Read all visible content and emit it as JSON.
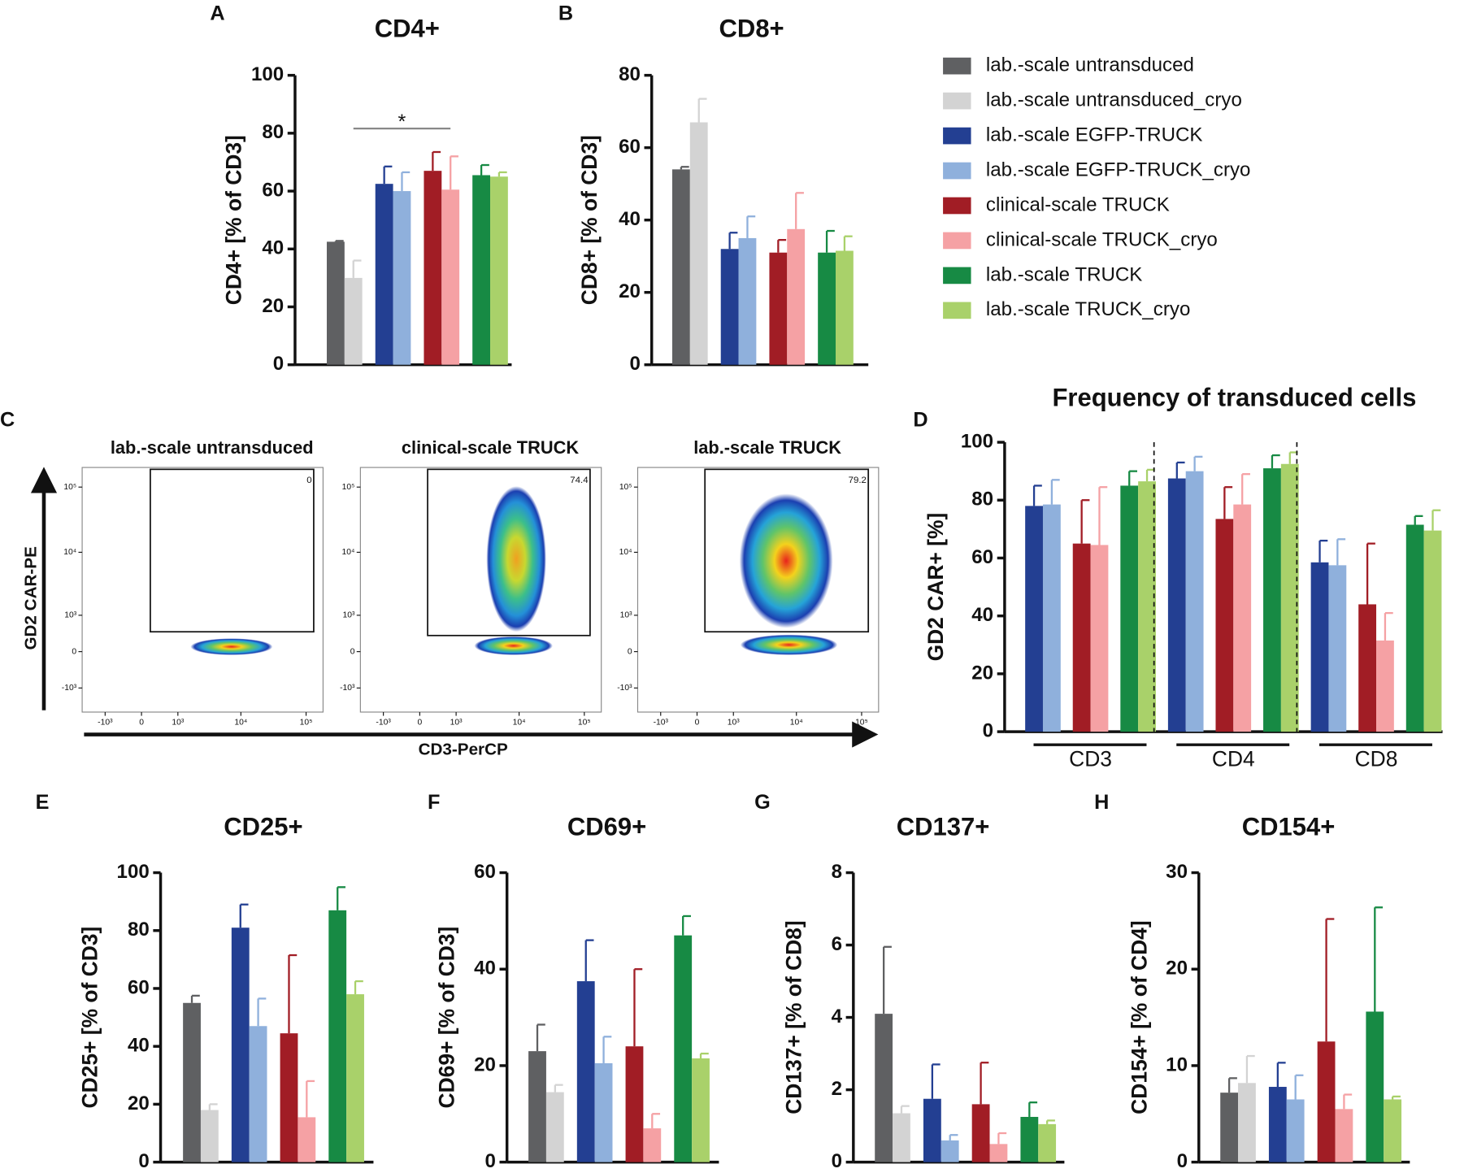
{
  "legend": [
    {
      "name": "lab.-scale untransduced",
      "color": "#5f6062"
    },
    {
      "name": "lab.-scale untransduced_cryo",
      "color": "#d3d3d3"
    },
    {
      "name": "lab.-scale EGFP-TRUCK",
      "color": "#233f92"
    },
    {
      "name": "lab.-scale EGFP-TRUCK_cryo",
      "color": "#8fb0dc"
    },
    {
      "name": "clinical-scale TRUCK",
      "color": "#a11d25"
    },
    {
      "name": "clinical-scale TRUCK_cryo",
      "color": "#f5a1a4"
    },
    {
      "name": "lab.-scale TRUCK",
      "color": "#178a44"
    },
    {
      "name": "lab.-scale TRUCK_cryo",
      "color": "#a9d16a"
    }
  ],
  "chart_data": [
    {
      "type": "bar",
      "panel": "A",
      "title": "CD4+",
      "y_label": "CD4+ [% of CD3]",
      "ylim": [
        0,
        100
      ],
      "yticks": [
        0,
        20,
        40,
        60,
        80,
        100
      ],
      "values": [
        42.5,
        30,
        62.5,
        60,
        67,
        60.5,
        65.5,
        65
      ],
      "errors": [
        0.3,
        6,
        6,
        6.5,
        6.5,
        11.5,
        3.5,
        1.5
      ],
      "significance": [
        {
          "label": "*",
          "from": 1,
          "to": 5
        }
      ]
    },
    {
      "type": "bar",
      "panel": "B",
      "title": "CD8+",
      "y_label": "CD8+ [% of CD3]",
      "ylim": [
        0,
        80
      ],
      "yticks": [
        0,
        20,
        40,
        60,
        80
      ],
      "values": [
        54,
        67,
        32,
        35,
        31,
        37.5,
        31,
        31.5
      ],
      "errors": [
        0.7,
        6.5,
        4.5,
        6,
        3.5,
        10,
        6,
        4
      ]
    },
    {
      "type": "flow",
      "panel": "C",
      "x_label": "CD3-PerCP",
      "y_label": "GD2 CAR-PE",
      "xlim": [
        -2400,
        182000
      ],
      "ylim": [
        -2500,
        200000
      ],
      "xticks": [
        {
          "value": -1000,
          "label": "-10³"
        },
        0,
        {
          "value": 1000,
          "label": "10³"
        },
        {
          "value": 10000,
          "label": "10⁴"
        },
        {
          "value": 100000,
          "label": "10⁵"
        }
      ],
      "yticks": [
        {
          "value": -1000,
          "label": "-10³"
        },
        0,
        {
          "value": 1000,
          "label": "10³"
        },
        {
          "value": 10000,
          "label": "10⁴"
        },
        {
          "value": 100000,
          "label": "10⁵"
        }
      ],
      "plots": [
        {
          "title": "lab.-scale untransduced",
          "gate_value": 0
        },
        {
          "title": "clinical-scale TRUCK",
          "gate_value": 74.4
        },
        {
          "title": "lab.-scale TRUCK",
          "gate_value": 79.2
        }
      ]
    },
    {
      "type": "grouped_bar",
      "panel": "D",
      "title": "Frequency of transduced cells",
      "y_label": "GD2 CAR+ [%]",
      "ylim": [
        0,
        100
      ],
      "yticks": [
        0,
        20,
        40,
        60,
        80,
        100
      ],
      "categories": [
        "CD3",
        "CD4",
        "CD8"
      ],
      "series": [
        {
          "color": "#233f92",
          "values": [
            78,
            87.5,
            58.5
          ],
          "errors": [
            7,
            5.5,
            7.5
          ]
        },
        {
          "color": "#8fb0dc",
          "values": [
            78.5,
            90,
            57.5
          ],
          "errors": [
            8.5,
            5,
            9
          ]
        },
        {
          "color": "#a11d25",
          "values": [
            65,
            73.5,
            44
          ],
          "errors": [
            15,
            11,
            21
          ]
        },
        {
          "color": "#f5a1a4",
          "values": [
            64.5,
            78.5,
            31.5
          ],
          "errors": [
            20,
            10.5,
            9.5
          ]
        },
        {
          "color": "#178a44",
          "values": [
            85,
            91,
            71.5
          ],
          "errors": [
            5,
            4.5,
            3
          ]
        },
        {
          "color": "#a9d16a",
          "values": [
            86.5,
            92.5,
            69.5
          ],
          "errors": [
            4,
            4,
            7
          ]
        }
      ]
    },
    {
      "type": "bar",
      "panel": "E",
      "title": "CD25+",
      "y_label": "CD25+ [% of CD3]",
      "ylim": [
        0,
        100
      ],
      "yticks": [
        0,
        20,
        40,
        60,
        80,
        100
      ],
      "values": [
        55,
        18,
        81,
        47,
        44.5,
        15.5,
        87,
        58
      ],
      "errors": [
        2.5,
        2,
        8,
        9.5,
        27,
        12.5,
        8,
        4.5
      ]
    },
    {
      "type": "bar",
      "panel": "F",
      "title": "CD69+",
      "y_label": "CD69+ [% of CD3]",
      "ylim": [
        0,
        60
      ],
      "yticks": [
        0,
        20,
        40,
        60
      ],
      "values": [
        23,
        14.5,
        37.5,
        20.5,
        24,
        7,
        47,
        21.5
      ],
      "errors": [
        5.5,
        1.5,
        8.5,
        5.5,
        16,
        3,
        4,
        1
      ]
    },
    {
      "type": "bar",
      "panel": "G",
      "title": "CD137+",
      "y_label": "CD137+ [% of CD8]",
      "ylim": [
        0,
        8
      ],
      "yticks": [
        0,
        2,
        4,
        6,
        8
      ],
      "values": [
        4.1,
        1.35,
        1.75,
        0.6,
        1.6,
        0.5,
        1.25,
        1.05
      ],
      "errors": [
        1.85,
        0.2,
        0.95,
        0.15,
        1.15,
        0.3,
        0.4,
        0.1
      ]
    },
    {
      "type": "bar",
      "panel": "H",
      "title": "CD154+",
      "y_label": "CD154+ [% of CD4]",
      "ylim": [
        0,
        30
      ],
      "yticks": [
        0,
        10,
        20,
        30
      ],
      "values": [
        7.2,
        8.2,
        7.8,
        6.5,
        12.5,
        5.5,
        15.6,
        6.5
      ],
      "errors": [
        1.5,
        2.8,
        2.5,
        2.5,
        12.7,
        1.5,
        10.8,
        0.3
      ]
    }
  ]
}
